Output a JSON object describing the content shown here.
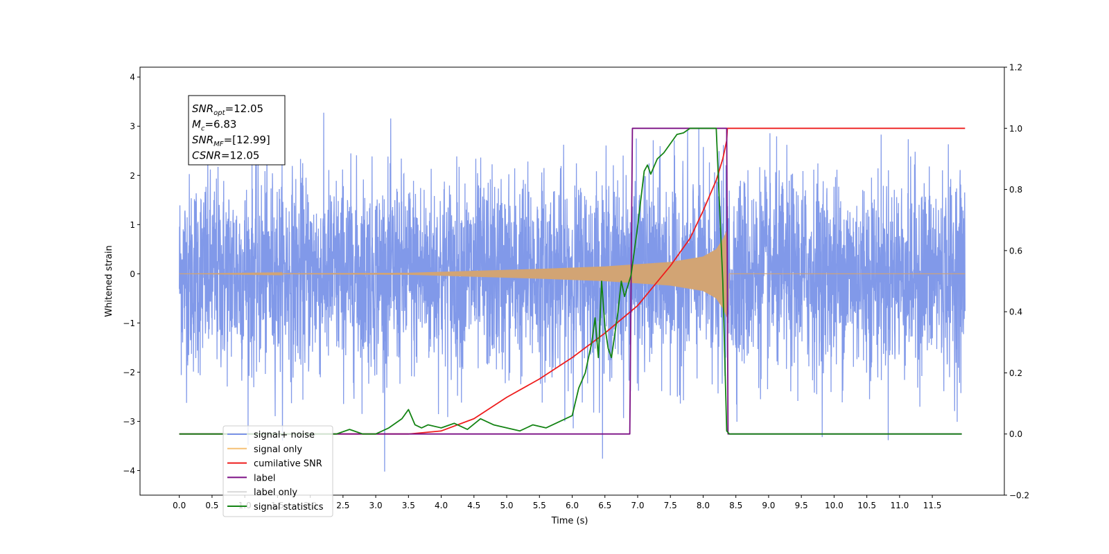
{
  "chart_data": {
    "type": "line",
    "xlabel": "Time (s)",
    "ylabel": "Whitened strain",
    "xlim": [
      -0.6,
      12.6
    ],
    "ylim_left": [
      -4.5,
      4.2
    ],
    "ylim_right": [
      -0.2,
      1.2
    ],
    "xticks": [
      "0.0",
      "0.5",
      "1.0",
      "1.5",
      "2.0",
      "2.5",
      "3.0",
      "3.5",
      "4.0",
      "4.5",
      "5.0",
      "5.5",
      "6.0",
      "6.5",
      "7.0",
      "7.5",
      "8.0",
      "8.5",
      "9.0",
      "9.5",
      "10.0",
      "10.5",
      "11.0",
      "11.5"
    ],
    "yticks_left": [
      "4",
      "3",
      "2",
      "1",
      "0",
      "−1",
      "−2",
      "−3",
      "−4"
    ],
    "yticks_right": [
      "1.2",
      "1.0",
      "0.8",
      "0.6",
      "0.4",
      "0.2",
      "0.0",
      "−0.2"
    ],
    "annotation": {
      "lines": [
        {
          "main": "SNR",
          "sub": "opt",
          "rest": "=12.05"
        },
        {
          "main": "M",
          "sub": "c",
          "rest": "=6.83"
        },
        {
          "main": "SNR",
          "sub": "MF",
          "rest": "=[12.99]"
        },
        {
          "main": "CSNR",
          "sub": "",
          "rest": "=12.05"
        }
      ]
    },
    "legend": {
      "placement": "lower-left",
      "entries": [
        {
          "label": "signal+ noise",
          "color": "#7a93e8"
        },
        {
          "label": "signal only",
          "color": "#f5c074"
        },
        {
          "label": "cumilative SNR",
          "color": "#ee1c1c"
        },
        {
          "label": "label",
          "color": "#7b0f84"
        },
        {
          "label": "label only",
          "color": "#d8d8d8"
        },
        {
          "label": "signal statistics",
          "color": "#138313"
        }
      ]
    },
    "series": [
      {
        "name": "signal+ noise",
        "axis": "left",
        "color": "#7a93e8",
        "x_range": [
          0.0,
          12.0
        ],
        "sigma": 1.0,
        "samples": 4000
      },
      {
        "name": "signal only",
        "axis": "left",
        "color": "#d2a474",
        "x_range": [
          0.0,
          8.37
        ],
        "envelope": [
          [
            0.0,
            0.0
          ],
          [
            3.5,
            0.02
          ],
          [
            4.5,
            0.06
          ],
          [
            5.5,
            0.1
          ],
          [
            6.5,
            0.15
          ],
          [
            7.5,
            0.24
          ],
          [
            8.0,
            0.35
          ],
          [
            8.2,
            0.5
          ],
          [
            8.3,
            0.7
          ],
          [
            8.37,
            0.9
          ]
        ]
      },
      {
        "name": "cumilative SNR",
        "axis": "right",
        "color": "#ee1c1c",
        "x": [
          0.0,
          3.5,
          4.0,
          4.5,
          5.0,
          5.5,
          6.0,
          6.5,
          7.0,
          7.5,
          7.8,
          8.0,
          8.2,
          8.3,
          8.36,
          8.37,
          12.0
        ],
        "y": [
          0.0,
          0.0,
          0.01,
          0.05,
          0.12,
          0.18,
          0.25,
          0.33,
          0.42,
          0.55,
          0.64,
          0.73,
          0.83,
          0.9,
          0.96,
          1.0,
          1.0
        ]
      },
      {
        "name": "label",
        "axis": "right",
        "color": "#7b0f84",
        "x": [
          0.0,
          6.88,
          6.92,
          8.36,
          8.38,
          11.95
        ],
        "y": [
          0.0,
          0.0,
          1.0,
          1.0,
          0.0,
          0.0
        ]
      },
      {
        "name": "signal statistics",
        "axis": "right",
        "color": "#138313",
        "x": [
          0.0,
          2.4,
          2.6,
          2.8,
          3.0,
          3.2,
          3.4,
          3.5,
          3.6,
          3.7,
          3.8,
          4.0,
          4.2,
          4.4,
          4.6,
          4.8,
          5.0,
          5.2,
          5.4,
          5.6,
          5.8,
          6.0,
          6.1,
          6.2,
          6.3,
          6.35,
          6.4,
          6.45,
          6.5,
          6.55,
          6.6,
          6.7,
          6.75,
          6.8,
          6.9,
          7.0,
          7.1,
          7.15,
          7.2,
          7.3,
          7.4,
          7.5,
          7.6,
          7.7,
          7.8,
          8.0,
          8.2,
          8.3,
          8.36,
          8.4,
          11.95
        ],
        "y": [
          0.0,
          0.0,
          0.015,
          0.0,
          0.0,
          0.02,
          0.05,
          0.08,
          0.03,
          0.02,
          0.03,
          0.02,
          0.035,
          0.015,
          0.05,
          0.03,
          0.02,
          0.01,
          0.03,
          0.02,
          0.04,
          0.06,
          0.15,
          0.2,
          0.3,
          0.38,
          0.25,
          0.5,
          0.35,
          0.28,
          0.25,
          0.4,
          0.5,
          0.45,
          0.52,
          0.68,
          0.86,
          0.88,
          0.85,
          0.9,
          0.92,
          0.95,
          0.98,
          0.985,
          1.0,
          1.0,
          1.0,
          0.5,
          0.01,
          0.0,
          0.0
        ]
      }
    ]
  }
}
